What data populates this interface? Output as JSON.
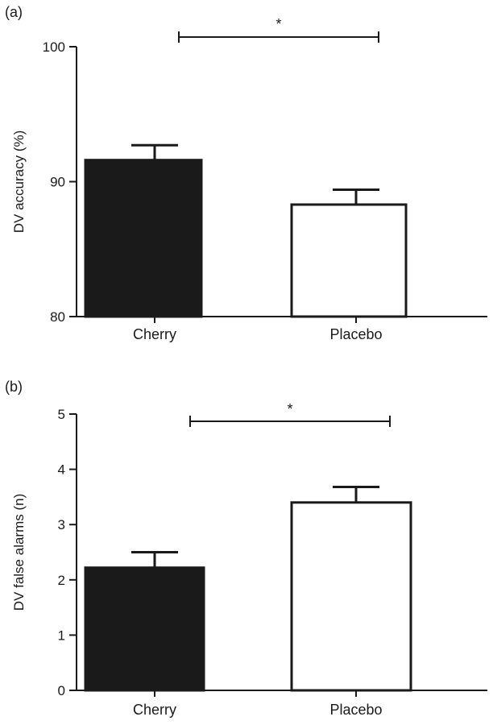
{
  "chart_data": [
    {
      "type": "bar",
      "panel_label": "(a)",
      "categories": [
        "Cherry",
        "Placebo"
      ],
      "values": [
        91.6,
        88.3
      ],
      "errors": [
        1.1,
        1.1
      ],
      "ylabel": "DV accuracy (%)",
      "xlabel": "",
      "ylim": [
        80,
        100
      ],
      "yticks": [
        80,
        90,
        100
      ],
      "bar_fills": [
        "#1a1a1a",
        "#ffffff"
      ],
      "significance": {
        "between": [
          "Cherry",
          "Placebo"
        ],
        "marker": "*"
      }
    },
    {
      "type": "bar",
      "panel_label": "(b)",
      "categories": [
        "Cherry",
        "Placebo"
      ],
      "values": [
        2.22,
        3.4
      ],
      "errors": [
        0.28,
        0.28
      ],
      "ylabel": "DV false alarms (n)",
      "xlabel": "",
      "ylim": [
        0,
        5
      ],
      "yticks": [
        0,
        1,
        2,
        3,
        4,
        5
      ],
      "bar_fills": [
        "#1a1a1a",
        "#ffffff"
      ],
      "significance": {
        "between": [
          "Cherry",
          "Placebo"
        ],
        "marker": "*"
      }
    }
  ]
}
